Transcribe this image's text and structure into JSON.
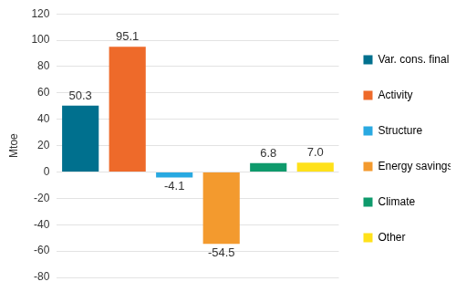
{
  "chart_data": {
    "type": "bar",
    "y_label": "Mtoe",
    "categories": [
      "Var. cons. final",
      "Activity",
      "Structure",
      "Energy savings",
      "Climate",
      "Other"
    ],
    "values": [
      50.3,
      95.1,
      -4.1,
      -54.5,
      6.8,
      7.0
    ],
    "value_labels": [
      "50.3",
      "95.1",
      "-4.1",
      "-54.5",
      "6.8",
      "7.0"
    ],
    "colors": [
      "#00708e",
      "#ee6a2a",
      "#29a9e1",
      "#f39a2e",
      "#0e9a6c",
      "#ffe11a"
    ],
    "ylim": [
      -80,
      120
    ],
    "yticks": [
      -80,
      -60,
      -40,
      -20,
      0,
      20,
      40,
      60,
      80,
      100,
      120
    ],
    "grid": true,
    "legend": "right",
    "data_labels": true,
    "tick_labels": "y"
  }
}
